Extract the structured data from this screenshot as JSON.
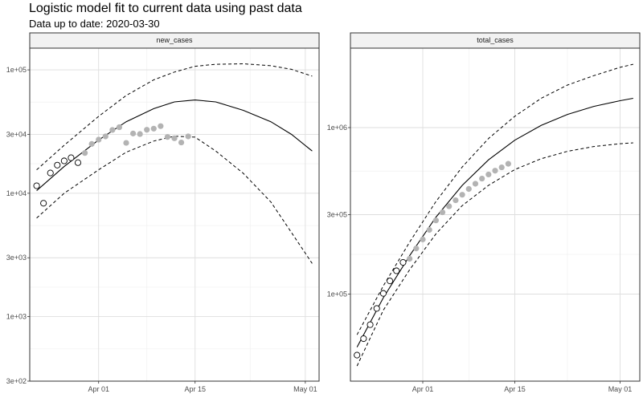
{
  "title": "Logistic model fit to current data using past data",
  "subtitle": "Data up to date: 2020-03-30",
  "chart_data": [
    {
      "type": "line",
      "panel": "new_cases",
      "scale": "log10",
      "x_ticks": [
        "Apr 01",
        "Apr 15",
        "May 01"
      ],
      "x_tick_values": [
        "2020-04-01",
        "2020-04-15",
        "2020-05-01"
      ],
      "xlim": [
        "2020-03-22",
        "2020-05-03"
      ],
      "y_ticks": [
        "3e+02",
        "1e+03",
        "3e+03",
        "1e+04",
        "3e+04",
        "1e+05"
      ],
      "y_tick_values": [
        300,
        1000,
        3000,
        10000,
        30000,
        100000
      ],
      "ylim": [
        300,
        150000
      ],
      "observed_fit": {
        "x": [
          "2020-03-23",
          "2020-03-24",
          "2020-03-25",
          "2020-03-26",
          "2020-03-27",
          "2020-03-28",
          "2020-03-29"
        ],
        "y": [
          11500,
          8300,
          14600,
          16900,
          18300,
          19400,
          17700
        ]
      },
      "observed_new": {
        "x": [
          "2020-03-30",
          "2020-03-31",
          "2020-04-01",
          "2020-04-02",
          "2020-04-03",
          "2020-04-04",
          "2020-04-05",
          "2020-04-06",
          "2020-04-07",
          "2020-04-08",
          "2020-04-09",
          "2020-04-10",
          "2020-04-11",
          "2020-04-12",
          "2020-04-13",
          "2020-04-14"
        ],
        "y": [
          21200,
          25100,
          27200,
          28900,
          32600,
          34300,
          25600,
          30500,
          30200,
          32700,
          33400,
          35000,
          28600,
          27900,
          25800,
          28900
        ]
      },
      "fit": {
        "x": [
          "2020-03-23",
          "2020-03-27",
          "2020-04-01",
          "2020-04-05",
          "2020-04-09",
          "2020-04-12",
          "2020-04-15",
          "2020-04-18",
          "2020-04-22",
          "2020-04-26",
          "2020-04-29",
          "2020-05-02"
        ],
        "y": [
          10500,
          16500,
          27000,
          38000,
          48500,
          55000,
          57000,
          55000,
          47000,
          38000,
          30000,
          22000
        ]
      },
      "upper": {
        "x": [
          "2020-03-23",
          "2020-03-27",
          "2020-04-01",
          "2020-04-05",
          "2020-04-09",
          "2020-04-12",
          "2020-04-15",
          "2020-04-18",
          "2020-04-22",
          "2020-04-26",
          "2020-04-29",
          "2020-05-02"
        ],
        "y": [
          15500,
          24500,
          42000,
          62000,
          83000,
          96000,
          107000,
          111000,
          112000,
          108000,
          101000,
          89000
        ]
      },
      "lower": {
        "x": [
          "2020-03-23",
          "2020-03-27",
          "2020-04-01",
          "2020-04-05",
          "2020-04-09",
          "2020-04-12",
          "2020-04-15",
          "2020-04-18",
          "2020-04-22",
          "2020-04-26",
          "2020-04-29",
          "2020-05-02"
        ],
        "y": [
          6300,
          10000,
          15500,
          21500,
          26500,
          29000,
          28500,
          22000,
          14500,
          8500,
          4800,
          2700
        ]
      }
    },
    {
      "type": "line",
      "panel": "total_cases",
      "scale": "log10",
      "x_ticks": [
        "Apr 01",
        "Apr 15",
        "May 01"
      ],
      "x_tick_values": [
        "2020-04-01",
        "2020-04-15",
        "2020-05-01"
      ],
      "xlim": [
        "2020-03-21",
        "2020-05-04"
      ],
      "y_ticks": [
        "1e+05",
        "3e+05",
        "1e+06"
      ],
      "y_tick_values": [
        100000,
        300000,
        1000000
      ],
      "ylim": [
        30000,
        3000000
      ],
      "observed_fit": {
        "x": [
          "2020-03-22",
          "2020-03-23",
          "2020-03-24",
          "2020-03-25",
          "2020-03-26",
          "2020-03-27",
          "2020-03-28",
          "2020-03-29"
        ],
        "y": [
          43000,
          54000,
          65500,
          82000,
          101000,
          120000,
          138000,
          155000
        ]
      },
      "observed_new": {
        "x": [
          "2020-03-30",
          "2020-03-31",
          "2020-04-01",
          "2020-04-02",
          "2020-04-03",
          "2020-04-04",
          "2020-04-05",
          "2020-04-06",
          "2020-04-07",
          "2020-04-08",
          "2020-04-09",
          "2020-04-10",
          "2020-04-11",
          "2020-04-12",
          "2020-04-13",
          "2020-04-14"
        ],
        "y": [
          163000,
          188000,
          213000,
          243000,
          277000,
          310000,
          337000,
          366000,
          395000,
          428000,
          460000,
          494000,
          523000,
          551000,
          577000,
          606000
        ]
      },
      "fit": {
        "x": [
          "2020-03-22",
          "2020-03-26",
          "2020-03-30",
          "2020-04-03",
          "2020-04-07",
          "2020-04-11",
          "2020-04-15",
          "2020-04-19",
          "2020-04-23",
          "2020-04-27",
          "2020-05-01",
          "2020-05-03"
        ],
        "y": [
          48000,
          95000,
          170000,
          290000,
          450000,
          640000,
          840000,
          1030000,
          1200000,
          1340000,
          1450000,
          1500000
        ]
      },
      "upper": {
        "x": [
          "2020-03-22",
          "2020-03-26",
          "2020-03-30",
          "2020-04-03",
          "2020-04-07",
          "2020-04-11",
          "2020-04-15",
          "2020-04-19",
          "2020-04-23",
          "2020-04-27",
          "2020-05-01",
          "2020-05-03"
        ],
        "y": [
          57000,
          112000,
          205000,
          360000,
          580000,
          860000,
          1170000,
          1500000,
          1800000,
          2050000,
          2300000,
          2400000
        ]
      },
      "lower": {
        "x": [
          "2020-03-22",
          "2020-03-26",
          "2020-03-30",
          "2020-04-03",
          "2020-04-07",
          "2020-04-11",
          "2020-04-15",
          "2020-04-19",
          "2020-04-23",
          "2020-04-27",
          "2020-05-01",
          "2020-05-03"
        ],
        "y": [
          37000,
          80000,
          140000,
          230000,
          340000,
          450000,
          560000,
          650000,
          720000,
          770000,
          800000,
          810000
        ]
      }
    }
  ],
  "colors": {
    "observed_new_fill": "#b3b3b3",
    "line": "#000000",
    "grid_major": "#dedede",
    "grid_minor": "#f0f0f0",
    "panel_border": "#333333",
    "strip_fill": "#f2f2f2"
  }
}
